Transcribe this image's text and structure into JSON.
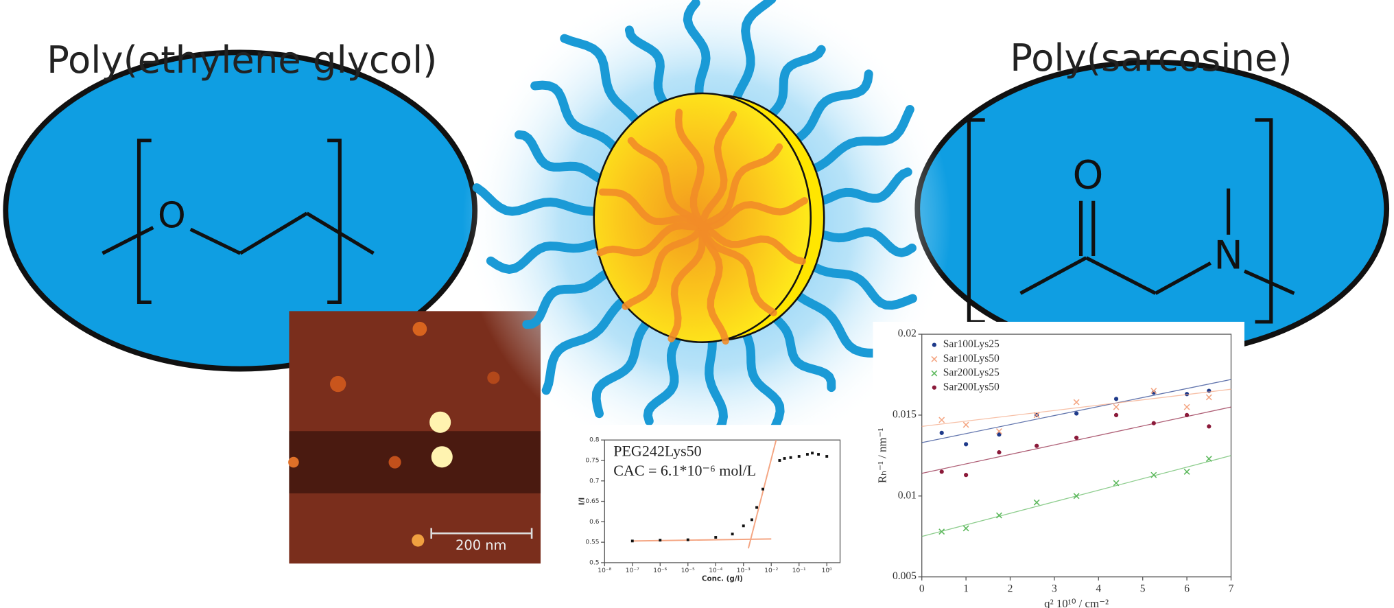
{
  "left_panel": {
    "title": "Poly(ethylene glycol)",
    "atoms": [
      "O"
    ]
  },
  "right_panel": {
    "title": "Poly(sarcosine)",
    "atoms": [
      "O",
      "N"
    ]
  },
  "afm_image": {
    "scale_bar": "200 nm"
  },
  "chart_data": [
    {
      "type": "scatter",
      "log_x": true,
      "annotations": [
        "PEG242Lys50",
        "CAC = 6.1*10⁻⁶ mol/L"
      ],
      "x_label": "Conc. (g/l)",
      "y_label": "I/I",
      "x": [
        1e-07,
        1e-06,
        1e-05,
        0.0001,
        0.0004,
        0.001,
        0.002,
        0.003,
        0.005,
        0.02,
        0.03,
        0.05,
        0.1,
        0.2,
        0.3,
        0.5,
        1
      ],
      "values": [
        0.553,
        0.555,
        0.556,
        0.562,
        0.57,
        0.59,
        0.605,
        0.635,
        0.68,
        0.75,
        0.755,
        0.757,
        0.76,
        0.765,
        0.768,
        0.765,
        0.76
      ],
      "color": "#111111",
      "fit_color": "#f4a582",
      "fit_lines": [
        {
          "x": [
            1e-07,
            0.01
          ],
          "y": [
            0.553,
            0.558
          ]
        },
        {
          "x": [
            0.0015,
            0.015
          ],
          "y": [
            0.535,
            0.8
          ]
        }
      ],
      "xlim": [
        1e-08,
        3
      ],
      "ylim": [
        0.5,
        0.8
      ],
      "xticks": [
        {
          "value": 1e-08,
          "label": "10⁻⁸"
        },
        {
          "value": 1e-07,
          "label": "10⁻⁷"
        },
        {
          "value": 1e-06,
          "label": "10⁻⁶"
        },
        {
          "value": 1e-05,
          "label": "10⁻⁵"
        },
        {
          "value": 0.0001,
          "label": "10⁻⁴"
        },
        {
          "value": 0.001,
          "label": "10⁻³"
        },
        {
          "value": 0.01,
          "label": "10⁻²"
        },
        {
          "value": 0.1,
          "label": "10⁻¹"
        },
        {
          "value": 1,
          "label": "10⁰"
        }
      ],
      "yticks": [
        0.5,
        0.55,
        0.6,
        0.65,
        0.7,
        0.75,
        0.8
      ]
    },
    {
      "type": "scatter",
      "log_x": false,
      "x_label": "q² 10¹⁰ / cm⁻²",
      "y_label": "Rₕ⁻¹ / nm⁻¹",
      "legend": "top-left",
      "x": [
        0.45,
        1,
        1.75,
        2.6,
        3.5,
        4.4,
        5.25,
        6,
        6.5
      ],
      "series": [
        {
          "name": "Sar100Lys25",
          "color": "#1f3a8a",
          "marker": "dot",
          "values": [
            0.0139,
            0.0132,
            0.0138,
            0.015,
            0.0151,
            0.016,
            0.0164,
            0.0163,
            0.0165
          ],
          "fit": {
            "x": [
              0,
              7
            ],
            "y": [
              0.0133,
              0.0172
            ]
          }
        },
        {
          "name": "Sar100Lys50",
          "color": "#f4a582",
          "marker": "cross",
          "values": [
            0.0147,
            0.0144,
            0.014,
            0.015,
            0.0158,
            0.0155,
            0.0165,
            0.0155,
            0.0161
          ],
          "fit": {
            "x": [
              0,
              7
            ],
            "y": [
              0.0143,
              0.0166
            ]
          }
        },
        {
          "name": "Sar200Lys25",
          "color": "#5cb85c",
          "marker": "cross",
          "values": [
            0.0078,
            0.008,
            0.0088,
            0.0096,
            0.01,
            0.0108,
            0.0113,
            0.0115,
            0.0123
          ],
          "fit": {
            "x": [
              0,
              7
            ],
            "y": [
              0.0075,
              0.0125
            ]
          }
        },
        {
          "name": "Sar200Lys50",
          "color": "#8b1a3a",
          "marker": "dot",
          "values": [
            0.0115,
            0.0113,
            0.0127,
            0.0131,
            0.0136,
            0.015,
            0.0145,
            0.015,
            0.0143
          ],
          "fit": {
            "x": [
              0,
              7
            ],
            "y": [
              0.0114,
              0.0155
            ]
          }
        }
      ],
      "xlim": [
        0,
        7
      ],
      "ylim": [
        0.005,
        0.02
      ],
      "xticks": [
        0,
        1,
        2,
        3,
        4,
        5,
        6,
        7
      ],
      "yticks": [
        0.005,
        0.01,
        0.015,
        0.02
      ]
    }
  ]
}
